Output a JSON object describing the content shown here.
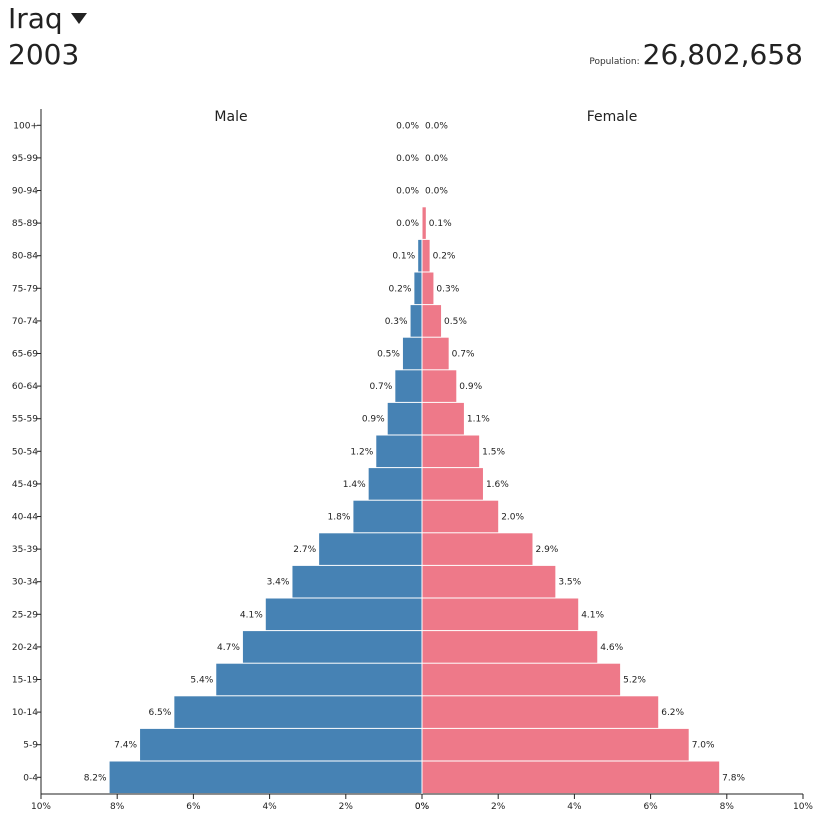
{
  "header": {
    "country": "Iraq",
    "year": "2003",
    "population_label": "Population:",
    "population_value": "26,802,658"
  },
  "chart_data": {
    "type": "bar",
    "title": "Iraq 2003",
    "orientation": "horizontal-population-pyramid",
    "categories": [
      "100+",
      "95-99",
      "90-94",
      "85-89",
      "80-84",
      "75-79",
      "70-74",
      "65-69",
      "60-64",
      "55-59",
      "50-54",
      "45-49",
      "40-44",
      "35-39",
      "30-34",
      "25-29",
      "20-24",
      "15-19",
      "10-14",
      "5-9",
      "0-4"
    ],
    "series": [
      {
        "name": "Male",
        "color": "#4682b4",
        "values": [
          0.0,
          0.0,
          0.0,
          0.0,
          0.1,
          0.2,
          0.3,
          0.5,
          0.7,
          0.9,
          1.2,
          1.4,
          1.8,
          2.7,
          3.4,
          4.1,
          4.7,
          5.4,
          6.5,
          7.4,
          8.2
        ],
        "labels": [
          "0.0%",
          "0.0%",
          "0.0%",
          "0.0%",
          "0.1%",
          "0.2%",
          "0.3%",
          "0.5%",
          "0.7%",
          "0.9%",
          "1.2%",
          "1.4%",
          "1.8%",
          "2.7%",
          "3.4%",
          "4.1%",
          "4.7%",
          "5.4%",
          "6.5%",
          "7.4%",
          "8.2%"
        ]
      },
      {
        "name": "Female",
        "color": "#ee7989",
        "values": [
          0.0,
          0.0,
          0.0,
          0.1,
          0.2,
          0.3,
          0.5,
          0.7,
          0.9,
          1.1,
          1.5,
          1.6,
          2.0,
          2.9,
          3.5,
          4.1,
          4.6,
          5.2,
          6.2,
          7.0,
          7.8
        ],
        "labels": [
          "0.0%",
          "0.0%",
          "0.0%",
          "0.1%",
          "0.2%",
          "0.3%",
          "0.5%",
          "0.7%",
          "0.9%",
          "1.1%",
          "1.5%",
          "1.6%",
          "2.0%",
          "2.9%",
          "3.5%",
          "4.1%",
          "4.6%",
          "5.2%",
          "6.2%",
          "7.0%",
          "7.8%"
        ]
      }
    ],
    "xlim": [
      0,
      10
    ],
    "x_ticks": [
      "10%",
      "8%",
      "6%",
      "4%",
      "2%",
      "0%",
      "0%",
      "2%",
      "4%",
      "6%",
      "8%",
      "10%"
    ],
    "xlabel": "",
    "ylabel": ""
  }
}
